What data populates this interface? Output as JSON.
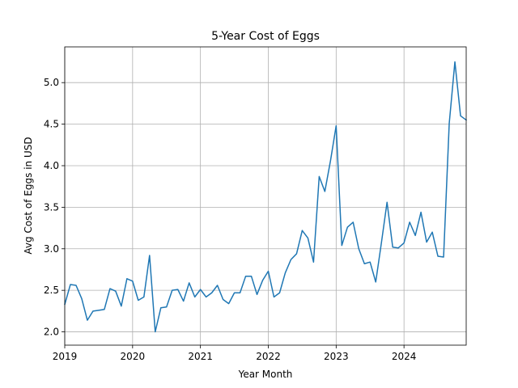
{
  "chart_data": {
    "type": "line",
    "title": "5-Year Cost of Eggs",
    "xlabel": "Year Month",
    "ylabel": "Avg Cost of Eggs in USD",
    "x_tick_labels": [
      "2019",
      "2020",
      "2021",
      "2022",
      "2023",
      "2024"
    ],
    "y_tick_labels": [
      "2.0",
      "2.5",
      "3.0",
      "3.5",
      "4.0",
      "4.5",
      "5.0"
    ],
    "xlim": [
      "2019-01",
      "2024-12"
    ],
    "ylim": [
      1.84,
      5.43
    ],
    "grid": true,
    "color": "#1f77b4",
    "x": [
      "2019-01",
      "2019-02",
      "2019-03",
      "2019-04",
      "2019-05",
      "2019-06",
      "2019-07",
      "2019-08",
      "2019-09",
      "2019-10",
      "2019-11",
      "2019-12",
      "2020-01",
      "2020-02",
      "2020-03",
      "2020-04",
      "2020-05",
      "2020-06",
      "2020-07",
      "2020-08",
      "2020-09",
      "2020-10",
      "2020-11",
      "2020-12",
      "2021-01",
      "2021-02",
      "2021-03",
      "2021-04",
      "2021-05",
      "2021-06",
      "2021-07",
      "2021-08",
      "2021-09",
      "2021-10",
      "2021-11",
      "2021-12",
      "2022-01",
      "2022-02",
      "2022-03",
      "2022-04",
      "2022-05",
      "2022-06",
      "2022-07",
      "2022-08",
      "2022-09",
      "2022-10",
      "2022-11",
      "2022-12",
      "2023-01",
      "2023-02",
      "2023-03",
      "2023-04",
      "2023-05",
      "2023-06",
      "2023-07",
      "2023-08",
      "2023-09",
      "2023-10",
      "2023-11",
      "2023-12",
      "2024-01",
      "2024-02",
      "2024-03",
      "2024-04",
      "2024-05",
      "2024-06",
      "2024-07",
      "2024-08",
      "2024-09",
      "2024-10",
      "2024-11",
      "2024-12"
    ],
    "series": [
      {
        "values": [
          2.33,
          2.57,
          2.56,
          2.4,
          2.14,
          2.25,
          2.26,
          2.27,
          2.52,
          2.49,
          2.31,
          2.64,
          2.61,
          2.38,
          2.42,
          2.92,
          2.0,
          2.29,
          2.3,
          2.5,
          2.51,
          2.37,
          2.59,
          2.42,
          2.51,
          2.42,
          2.47,
          2.56,
          2.39,
          2.34,
          2.47,
          2.47,
          2.67,
          2.67,
          2.45,
          2.62,
          2.73,
          2.42,
          2.47,
          2.71,
          2.87,
          2.94,
          3.22,
          3.13,
          2.84,
          3.87,
          3.69,
          4.06,
          4.48,
          3.04,
          3.26,
          3.32,
          3.0,
          2.82,
          2.84,
          2.6,
          3.07,
          3.56,
          3.02,
          3.01,
          3.07,
          3.32,
          3.16,
          3.44,
          3.08,
          3.2,
          2.91,
          2.9,
          4.51,
          5.25,
          4.6,
          4.55
        ]
      }
    ]
  }
}
